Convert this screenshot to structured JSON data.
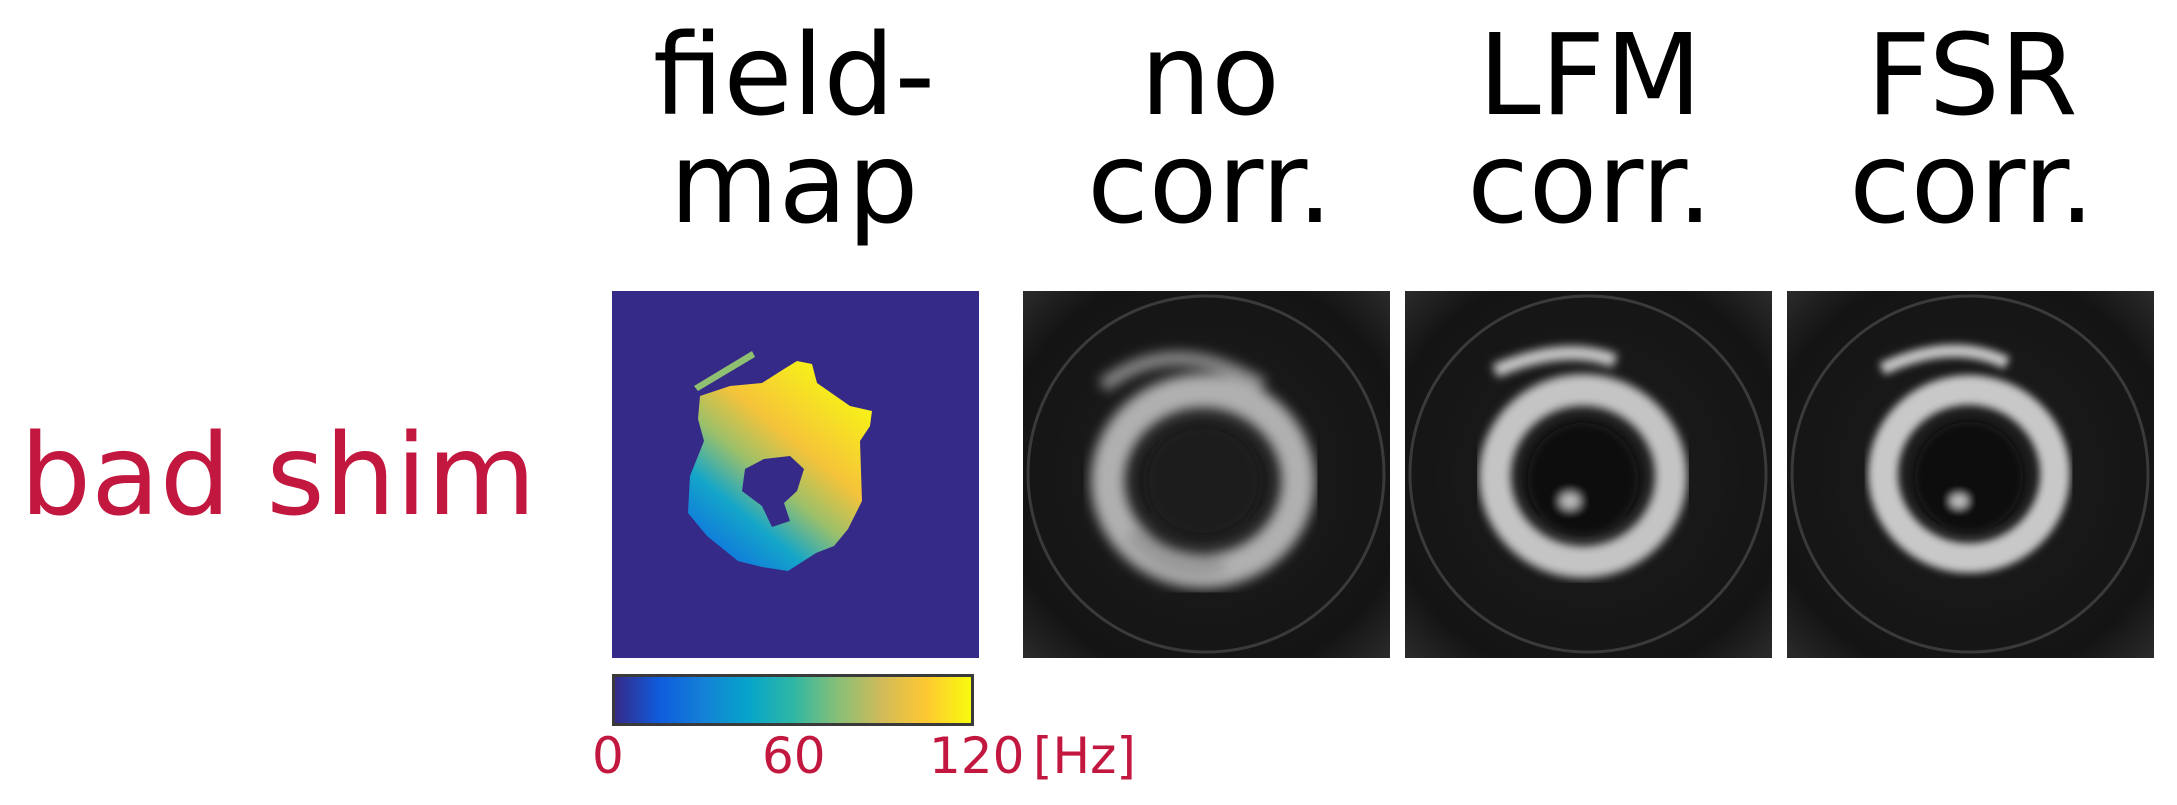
{
  "columns": [
    {
      "title": "field-\nmap"
    },
    {
      "title": "no\ncorr."
    },
    {
      "title": "LFM\ncorr."
    },
    {
      "title": "FSR\ncorr."
    }
  ],
  "row_label": "bad shim",
  "colorbar": {
    "ticks": [
      "0",
      "60",
      "120"
    ],
    "unit": "[Hz]",
    "colors": [
      "#352a87",
      "#0f5cdd",
      "#1481d6",
      "#06a4ca",
      "#2eb7a4",
      "#87bf77",
      "#d1bb59",
      "#fec832",
      "#f9fb0e"
    ]
  },
  "colors": {
    "label_red": "#c2173f",
    "fieldmap_background": "#352a87"
  }
}
